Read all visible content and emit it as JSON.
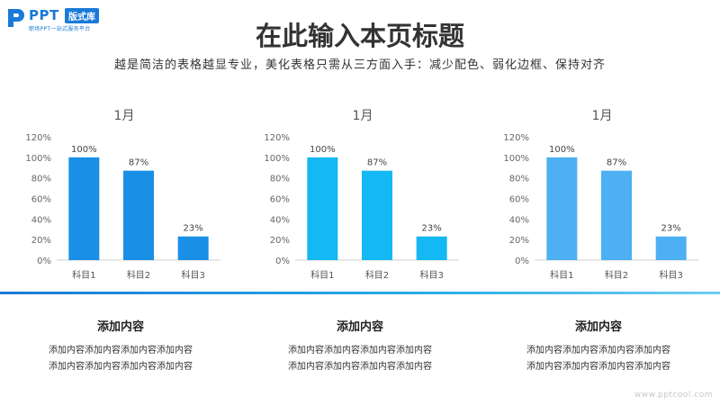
{
  "logo": {
    "name": "PPT",
    "badge": "版式库",
    "tagline": "职场PPT一站式服务平台"
  },
  "header": {
    "title": "在此输入本页标题",
    "subtitle": "越是简洁的表格越显专业，美化表格只需从三方面入手：减少配色、弱化边框、保持对齐"
  },
  "chart_data": [
    {
      "type": "bar",
      "title": "1月",
      "categories": [
        "科目1",
        "科目2",
        "科目3"
      ],
      "values": [
        100,
        87,
        23
      ],
      "ylim": [
        0,
        120
      ],
      "yticks": [
        "0%",
        "20%",
        "40%",
        "60%",
        "80%",
        "100%",
        "120%"
      ],
      "data_labels": [
        "100%",
        "87%",
        "23%"
      ],
      "color": "#1a8fe6",
      "grid": false,
      "legend": "none"
    },
    {
      "type": "bar",
      "title": "1月",
      "categories": [
        "科目1",
        "科目2",
        "科目3"
      ],
      "values": [
        100,
        87,
        23
      ],
      "ylim": [
        0,
        120
      ],
      "yticks": [
        "0%",
        "20%",
        "40%",
        "60%",
        "80%",
        "100%",
        "120%"
      ],
      "data_labels": [
        "100%",
        "87%",
        "23%"
      ],
      "color": "#14b8f2",
      "grid": false,
      "legend": "none"
    },
    {
      "type": "bar",
      "title": "1月",
      "categories": [
        "科目1",
        "科目2",
        "科目3"
      ],
      "values": [
        100,
        87,
        23
      ],
      "ylim": [
        0,
        120
      ],
      "yticks": [
        "0%",
        "20%",
        "40%",
        "60%",
        "80%",
        "100%",
        "120%"
      ],
      "data_labels": [
        "100%",
        "87%",
        "23%"
      ],
      "color": "#4cb0f2",
      "grid": false,
      "legend": "none"
    }
  ],
  "cards": [
    {
      "title": "添加内容",
      "lines": [
        "添加内容添加内容添加内容添加内容",
        "添加内容添加内容添加内容添加内容"
      ]
    },
    {
      "title": "添加内容",
      "lines": [
        "添加内容添加内容添加内容添加内容",
        "添加内容添加内容添加内容添加内容"
      ]
    },
    {
      "title": "添加内容",
      "lines": [
        "添加内容添加内容添加内容添加内容",
        "添加内容添加内容添加内容添加内容"
      ]
    }
  ],
  "watermark": "www.pptcool.com",
  "colors": {
    "accent": "#1a7ad8",
    "divider_start": "#1a7ad8",
    "divider_end": "#6fcdf2"
  }
}
